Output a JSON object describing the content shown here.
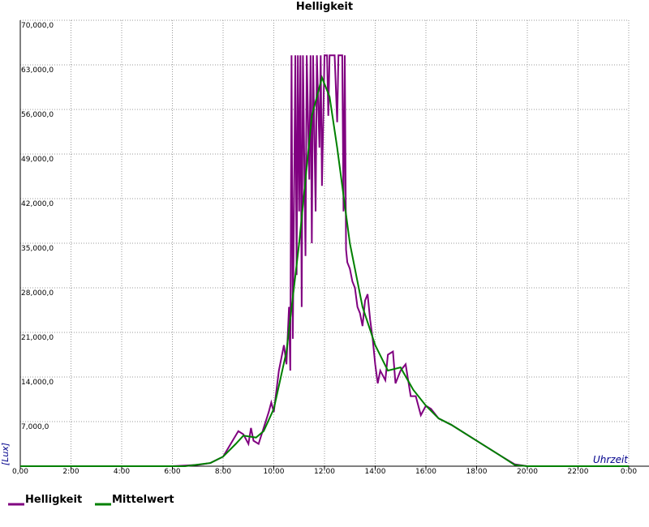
{
  "chart_data": {
    "type": "line",
    "title": "Helligkeit",
    "y_label": "[Lux]",
    "x_label": "Uhrzeit",
    "xlim": [
      0,
      24
    ],
    "ylim": [
      0,
      70000
    ],
    "xticks": [
      {
        "value": 0,
        "label": "0,00"
      },
      {
        "value": 2,
        "label": "2:00"
      },
      {
        "value": 4,
        "label": "4:00"
      },
      {
        "value": 6,
        "label": "6:00"
      },
      {
        "value": 8,
        "label": "8:00"
      },
      {
        "value": 10,
        "label": "10:00"
      },
      {
        "value": 12,
        "label": "12:00"
      },
      {
        "value": 14,
        "label": "14:00"
      },
      {
        "value": 16,
        "label": "16:00"
      },
      {
        "value": 18,
        "label": "18:00"
      },
      {
        "value": 20,
        "label": "20:00"
      },
      {
        "value": 22,
        "label": "22:00"
      },
      {
        "value": 24,
        "label": "0:00"
      }
    ],
    "yticks": [
      {
        "value": 7000,
        "label": "7,000,0"
      },
      {
        "value": 14000,
        "label": "14,000,0"
      },
      {
        "value": 21000,
        "label": "21,000,0"
      },
      {
        "value": 28000,
        "label": "28,000,0"
      },
      {
        "value": 35000,
        "label": "35,000,0"
      },
      {
        "value": 42000,
        "label": "42,000,0"
      },
      {
        "value": 49000,
        "label": "49,000,0"
      },
      {
        "value": 56000,
        "label": "56,000,0"
      },
      {
        "value": 63000,
        "label": "63,000,0"
      },
      {
        "value": 70000,
        "label": "70,000,0"
      }
    ],
    "grid": true,
    "series": [
      {
        "name": "Helligkeit",
        "color": "#800080",
        "x": [
          0,
          6,
          7,
          7.5,
          8,
          8.3,
          8.6,
          8.8,
          9.0,
          9.1,
          9.2,
          9.4,
          9.6,
          9.8,
          9.9,
          10.0,
          10.2,
          10.4,
          10.5,
          10.6,
          10.65,
          10.7,
          10.75,
          10.85,
          10.9,
          10.95,
          11.0,
          11.05,
          11.1,
          11.15,
          11.25,
          11.3,
          11.4,
          11.45,
          11.5,
          11.55,
          11.65,
          11.7,
          11.8,
          11.85,
          11.9,
          12.0,
          12.1,
          12.15,
          12.2,
          12.4,
          12.5,
          12.55,
          12.7,
          12.75,
          12.8,
          12.85,
          12.9,
          13.0,
          13.1,
          13.2,
          13.3,
          13.4,
          13.5,
          13.6,
          13.7,
          13.8,
          13.9,
          14.0,
          14.1,
          14.2,
          14.4,
          14.5,
          14.7,
          14.8,
          15.0,
          15.2,
          15.4,
          15.6,
          15.8,
          16.0,
          16.2,
          16.5,
          17.0,
          18,
          19,
          19.5,
          20,
          24
        ],
        "values": [
          0,
          0,
          200,
          500,
          1500,
          3500,
          5500,
          5000,
          3500,
          6000,
          4000,
          3500,
          6000,
          8500,
          10000,
          8500,
          15000,
          19000,
          16000,
          25000,
          15000,
          64500,
          20000,
          64500,
          30000,
          64500,
          40000,
          64500,
          25000,
          64500,
          33000,
          64500,
          45000,
          64500,
          35000,
          64500,
          40000,
          64500,
          50000,
          64500,
          44000,
          64500,
          64500,
          55000,
          64500,
          64500,
          54000,
          64500,
          64500,
          40000,
          64500,
          34000,
          32000,
          31000,
          29000,
          28000,
          25000,
          24000,
          22000,
          26000,
          27000,
          23000,
          20000,
          16000,
          13000,
          15000,
          13500,
          17500,
          18000,
          13000,
          15000,
          16000,
          11000,
          11000,
          8000,
          9500,
          9000,
          7500,
          6500,
          4000,
          1500,
          300,
          0,
          0
        ]
      },
      {
        "name": "Mittelwert",
        "color": "#008000",
        "x": [
          0,
          6.5,
          7.5,
          8,
          8.5,
          8.8,
          9.3,
          9.6,
          10,
          10.5,
          11,
          11.5,
          11.9,
          12.2,
          12.5,
          13,
          13.5,
          14,
          14.5,
          15,
          15.5,
          16,
          16.5,
          17,
          18,
          19,
          19.5,
          20,
          24
        ],
        "values": [
          0,
          0,
          500,
          1500,
          3500,
          4800,
          4500,
          5500,
          9000,
          18000,
          35000,
          55000,
          61000,
          58000,
          50000,
          35000,
          25000,
          19000,
          15000,
          15500,
          12000,
          9500,
          7500,
          6500,
          4000,
          1500,
          200,
          0,
          0
        ]
      }
    ]
  }
}
